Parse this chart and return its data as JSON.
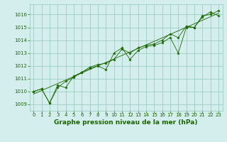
{
  "title": "Graphe pression niveau de la mer (hPa)",
  "x": [
    0,
    1,
    2,
    3,
    4,
    5,
    6,
    7,
    8,
    9,
    10,
    11,
    12,
    13,
    14,
    15,
    16,
    17,
    18,
    19,
    20,
    21,
    22,
    23
  ],
  "y_line1": [
    1010.0,
    1010.2,
    1009.1,
    1010.5,
    1010.3,
    1011.2,
    1011.5,
    1011.8,
    1012.0,
    1011.7,
    1013.0,
    1013.4,
    1012.5,
    1013.2,
    1013.5,
    1013.6,
    1013.8,
    1014.2,
    1013.0,
    1015.0,
    1015.0,
    1015.8,
    1016.2,
    1015.9
  ],
  "y_line2": [
    1010.0,
    1010.2,
    1009.1,
    1010.3,
    1010.8,
    1011.1,
    1011.5,
    1011.9,
    1012.1,
    1012.2,
    1012.5,
    1013.3,
    1013.0,
    1013.4,
    1013.6,
    1013.7,
    1014.0,
    1014.5,
    1014.2,
    1015.1,
    1015.0,
    1015.9,
    1016.0,
    1016.3
  ],
  "trend_x": [
    0,
    23
  ],
  "trend_y": [
    1009.8,
    1016.1
  ],
  "ylim": [
    1008.5,
    1016.8
  ],
  "xlim": [
    -0.5,
    23.5
  ],
  "yticks": [
    1009,
    1010,
    1011,
    1012,
    1013,
    1014,
    1015,
    1016
  ],
  "xticks": [
    0,
    1,
    2,
    3,
    4,
    5,
    6,
    7,
    8,
    9,
    10,
    11,
    12,
    13,
    14,
    15,
    16,
    17,
    18,
    19,
    20,
    21,
    22,
    23
  ],
  "line_color": "#1a6600",
  "trend_color": "#1a6600",
  "bg_color": "#d4eeed",
  "grid_color": "#90c8b8",
  "tick_label_color": "#1a6600",
  "title_color": "#1a6600",
  "title_fontsize": 6.5,
  "tick_fontsize": 5.0,
  "marker": "*",
  "marker_size": 2.8,
  "linewidth": 0.6
}
